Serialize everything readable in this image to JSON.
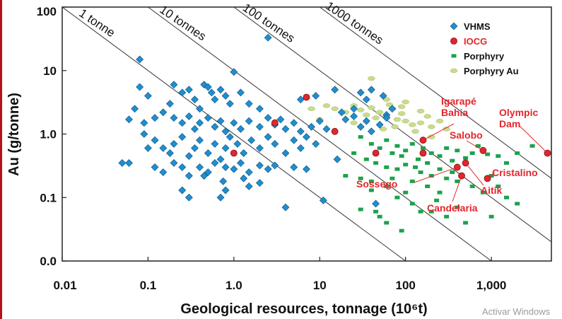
{
  "chart_data": {
    "type": "scatter",
    "xscale": "log",
    "yscale": "log",
    "xlim": [
      0.01,
      5000
    ],
    "ylim": [
      0.01,
      100
    ],
    "xlabel": "Geological resources, tonnage (10⁶t)",
    "ylabel": "Au (g/tonne)",
    "x_tick_values": [
      0.01,
      0.1,
      1,
      10,
      100,
      1000
    ],
    "x_tick_labels": [
      "0.01",
      "0.1",
      "1.0",
      "10",
      "100",
      "1,000"
    ],
    "y_tick_values": [
      0.01,
      0.1,
      1,
      10,
      100
    ],
    "y_tick_labels": [
      "0.0",
      "0.1",
      "1.0",
      "10",
      "100"
    ],
    "contours": [
      {
        "label": "1 tonne",
        "metal_t": 1
      },
      {
        "label": "10 tonnes",
        "metal_t": 10
      },
      {
        "label": "100 tonnes",
        "metal_t": 100
      },
      {
        "label": "1000 tonnes",
        "metal_t": 1000
      }
    ],
    "legend": [
      {
        "key": "VHMS",
        "label": "VHMS"
      },
      {
        "key": "IOCG",
        "label": "IOCG"
      },
      {
        "key": "Porphyry",
        "label": "Porphyry"
      },
      {
        "key": "PorphyryAu",
        "label": "Porphyry Au"
      }
    ],
    "series": [
      {
        "name": "VHMS",
        "marker": "diamond",
        "color": "#1f8ed0",
        "points": [
          [
            0.08,
            15
          ],
          [
            2.5,
            33
          ],
          [
            0.08,
            5.5
          ],
          [
            0.1,
            4
          ],
          [
            0.07,
            2.5
          ],
          [
            0.12,
            1.8
          ],
          [
            0.09,
            1.5
          ],
          [
            0.15,
            2.2
          ],
          [
            0.2,
            6
          ],
          [
            0.18,
            3
          ],
          [
            0.25,
            4.5
          ],
          [
            0.3,
            5
          ],
          [
            0.35,
            3.5
          ],
          [
            0.4,
            2.5
          ],
          [
            0.45,
            6
          ],
          [
            0.5,
            5.5
          ],
          [
            0.55,
            4.5
          ],
          [
            0.6,
            3.5
          ],
          [
            0.7,
            5
          ],
          [
            0.8,
            4
          ],
          [
            0.9,
            3
          ],
          [
            1.0,
            9.5
          ],
          [
            1.2,
            4.5
          ],
          [
            1.5,
            3
          ],
          [
            2.0,
            2.5
          ],
          [
            0.2,
            1.8
          ],
          [
            0.25,
            1.5
          ],
          [
            0.3,
            1.9
          ],
          [
            0.35,
            1.2
          ],
          [
            0.4,
            1.5
          ],
          [
            0.5,
            1.8
          ],
          [
            0.6,
            1.3
          ],
          [
            0.7,
            1.6
          ],
          [
            0.8,
            1.1
          ],
          [
            1.0,
            1.5
          ],
          [
            1.2,
            1.2
          ],
          [
            1.5,
            1.6
          ],
          [
            2.0,
            1.3
          ],
          [
            2.5,
            1.8
          ],
          [
            3.0,
            1.4
          ],
          [
            3.5,
            1.7
          ],
          [
            4.0,
            1.2
          ],
          [
            5.0,
            1.5
          ],
          [
            6.0,
            1.1
          ],
          [
            8.0,
            1.3
          ],
          [
            10,
            1.6
          ],
          [
            12,
            1.2
          ],
          [
            0.12,
            0.8
          ],
          [
            0.15,
            0.6
          ],
          [
            0.18,
            0.5
          ],
          [
            0.2,
            0.7
          ],
          [
            0.25,
            0.9
          ],
          [
            0.3,
            0.45
          ],
          [
            0.35,
            0.6
          ],
          [
            0.4,
            0.8
          ],
          [
            0.5,
            0.5
          ],
          [
            0.6,
            0.7
          ],
          [
            0.7,
            0.4
          ],
          [
            0.8,
            0.6
          ],
          [
            0.9,
            0.9
          ],
          [
            1.1,
            0.7
          ],
          [
            1.3,
            0.5
          ],
          [
            1.6,
            0.8
          ],
          [
            2.0,
            0.6
          ],
          [
            2.5,
            0.9
          ],
          [
            3.0,
            0.7
          ],
          [
            4.0,
            0.5
          ],
          [
            5.0,
            0.8
          ],
          [
            6.0,
            0.6
          ],
          [
            7.0,
            0.9
          ],
          [
            9.0,
            0.7
          ],
          [
            0.05,
            0.35
          ],
          [
            0.06,
            0.35
          ],
          [
            0.12,
            0.3
          ],
          [
            0.15,
            0.25
          ],
          [
            0.2,
            0.35
          ],
          [
            0.25,
            0.3
          ],
          [
            0.3,
            0.22
          ],
          [
            0.4,
            0.3
          ],
          [
            0.5,
            0.25
          ],
          [
            0.6,
            0.35
          ],
          [
            0.8,
            0.3
          ],
          [
            1.0,
            0.28
          ],
          [
            1.2,
            0.35
          ],
          [
            1.5,
            0.25
          ],
          [
            2.0,
            0.32
          ],
          [
            2.5,
            0.28
          ],
          [
            0.25,
            0.13
          ],
          [
            0.3,
            0.1
          ],
          [
            0.7,
            0.1
          ],
          [
            0.8,
            0.13
          ],
          [
            1.5,
            0.15
          ],
          [
            2.0,
            0.17
          ],
          [
            4,
            0.07
          ],
          [
            11,
            0.09
          ],
          [
            45,
            0.08
          ],
          [
            18,
            2.2
          ],
          [
            25,
            2.5
          ],
          [
            30,
            4.5
          ],
          [
            35,
            3.5
          ],
          [
            40,
            5
          ],
          [
            55,
            4
          ],
          [
            60,
            2
          ],
          [
            70,
            2.5
          ],
          [
            15,
            5
          ],
          [
            9,
            4
          ],
          [
            6,
            3.5
          ],
          [
            20,
            1.7
          ],
          [
            25,
            1.9
          ],
          [
            30,
            1.3
          ],
          [
            35,
            1.6
          ],
          [
            40,
            1.1
          ],
          [
            50,
            1.4
          ],
          [
            60,
            1.8
          ],
          [
            0.06,
            1.7
          ],
          [
            0.09,
            1.0
          ],
          [
            0.1,
            0.6
          ],
          [
            3,
            0.32
          ],
          [
            5,
            0.3
          ],
          [
            7,
            0.28
          ],
          [
            16,
            0.4
          ],
          [
            0.45,
            0.22
          ],
          [
            1.3,
            0.2
          ],
          [
            0.75,
            0.18
          ]
        ]
      },
      {
        "name": "IOCG",
        "marker": "circle",
        "color": "#e3262c",
        "points": [
          [
            7,
            3.8
          ],
          [
            3,
            1.5
          ],
          [
            1,
            0.5
          ],
          [
            15,
            1.1
          ],
          [
            45,
            0.5
          ],
          [
            160,
            0.8
          ],
          [
            160,
            0.5
          ],
          [
            400,
            0.3
          ],
          [
            500,
            0.35
          ],
          [
            450,
            0.22
          ],
          [
            800,
            0.55
          ],
          [
            900,
            0.2
          ],
          [
            4500,
            0.5
          ]
        ]
      },
      {
        "name": "Porphyry",
        "marker": "square",
        "color": "#1aa34a",
        "points": [
          [
            30,
            0.9
          ],
          [
            40,
            0.7
          ],
          [
            50,
            0.6
          ],
          [
            60,
            0.8
          ],
          [
            70,
            0.5
          ],
          [
            80,
            0.65
          ],
          [
            90,
            0.45
          ],
          [
            100,
            0.55
          ],
          [
            120,
            0.7
          ],
          [
            140,
            0.4
          ],
          [
            160,
            0.6
          ],
          [
            180,
            0.35
          ],
          [
            200,
            0.5
          ],
          [
            250,
            0.45
          ],
          [
            300,
            0.6
          ],
          [
            350,
            0.38
          ],
          [
            400,
            0.55
          ],
          [
            500,
            0.42
          ],
          [
            600,
            0.5
          ],
          [
            700,
            0.65
          ],
          [
            900,
            0.48
          ],
          [
            1200,
            0.45
          ],
          [
            1500,
            0.35
          ],
          [
            2000,
            0.5
          ],
          [
            3000,
            0.65
          ],
          [
            25,
            0.5
          ],
          [
            35,
            0.4
          ],
          [
            45,
            0.35
          ],
          [
            60,
            0.3
          ],
          [
            80,
            0.28
          ],
          [
            100,
            0.33
          ],
          [
            130,
            0.3
          ],
          [
            150,
            0.25
          ],
          [
            200,
            0.22
          ],
          [
            250,
            0.28
          ],
          [
            300,
            0.2
          ],
          [
            400,
            0.18
          ],
          [
            350,
            0.25
          ],
          [
            600,
            0.15
          ],
          [
            800,
            0.12
          ],
          [
            1000,
            0.22
          ],
          [
            1200,
            0.15
          ],
          [
            1500,
            0.1
          ],
          [
            2000,
            0.08
          ],
          [
            20,
            0.22
          ],
          [
            30,
            0.2
          ],
          [
            40,
            0.18
          ],
          [
            60,
            0.15
          ],
          [
            80,
            0.1
          ],
          [
            100,
            0.12
          ],
          [
            120,
            0.08
          ],
          [
            150,
            0.06
          ],
          [
            200,
            0.06
          ],
          [
            300,
            0.05
          ],
          [
            400,
            0.07
          ],
          [
            500,
            0.04
          ],
          [
            1000,
            0.05
          ],
          [
            50,
            0.05
          ],
          [
            60,
            0.04
          ],
          [
            90,
            0.03
          ],
          [
            40,
            0.13
          ],
          [
            45,
            0.06
          ],
          [
            30,
            0.065
          ],
          [
            70,
            0.2
          ],
          [
            120,
            0.18
          ],
          [
            180,
            0.15
          ],
          [
            250,
            0.12
          ],
          [
            230,
            0.09
          ]
        ]
      },
      {
        "name": "Porphyry Au",
        "marker": "ellipse",
        "color": "#c9dc8a",
        "points": [
          [
            15,
            2.5
          ],
          [
            20,
            2.2
          ],
          [
            25,
            2.8
          ],
          [
            30,
            2.4
          ],
          [
            35,
            2.0
          ],
          [
            40,
            2.6
          ],
          [
            45,
            1.8
          ],
          [
            50,
            2.2
          ],
          [
            60,
            1.9
          ],
          [
            70,
            2.5
          ],
          [
            80,
            1.7
          ],
          [
            90,
            2.1
          ],
          [
            100,
            1.6
          ],
          [
            120,
            1.4
          ],
          [
            150,
            1.5
          ],
          [
            200,
            1.3
          ],
          [
            180,
            1.9
          ],
          [
            250,
            1.6
          ],
          [
            300,
            1.2
          ],
          [
            10,
            1.7
          ],
          [
            12,
            2.8
          ],
          [
            25,
            1.5
          ],
          [
            55,
            1.2
          ],
          [
            75,
            1.3
          ],
          [
            130,
            1.1
          ],
          [
            200,
            0.9
          ],
          [
            65,
            2.9
          ],
          [
            90,
            2.7
          ],
          [
            40,
            7.5
          ],
          [
            8,
            2.5
          ],
          [
            100,
            3.2
          ],
          [
            60,
            3.5
          ],
          [
            150,
            2.3
          ]
        ]
      }
    ],
    "annotations": [
      {
        "id": "igarape-bahia",
        "lines": [
          "Igarapé",
          "Bahia"
        ],
        "x": 160,
        "y": 0.8
      },
      {
        "id": "olympic-dam",
        "lines": [
          "Olympic",
          "Dam"
        ],
        "x": 4500,
        "y": 0.5
      },
      {
        "id": "salobo",
        "lines": [
          "Salobo"
        ],
        "x": 800,
        "y": 0.55
      },
      {
        "id": "cristalino",
        "lines": [
          "Cristalino"
        ],
        "x": 900,
        "y": 0.2
      },
      {
        "id": "sossego",
        "lines": [
          "Sossego"
        ],
        "x": 400,
        "y": 0.3
      },
      {
        "id": "aitik",
        "lines": [
          "Aitik"
        ],
        "x": 500,
        "y": 0.35
      },
      {
        "id": "candelaria",
        "lines": [
          "Candelaria"
        ],
        "x": 450,
        "y": 0.22
      }
    ]
  },
  "watermark": "Activar Windows"
}
